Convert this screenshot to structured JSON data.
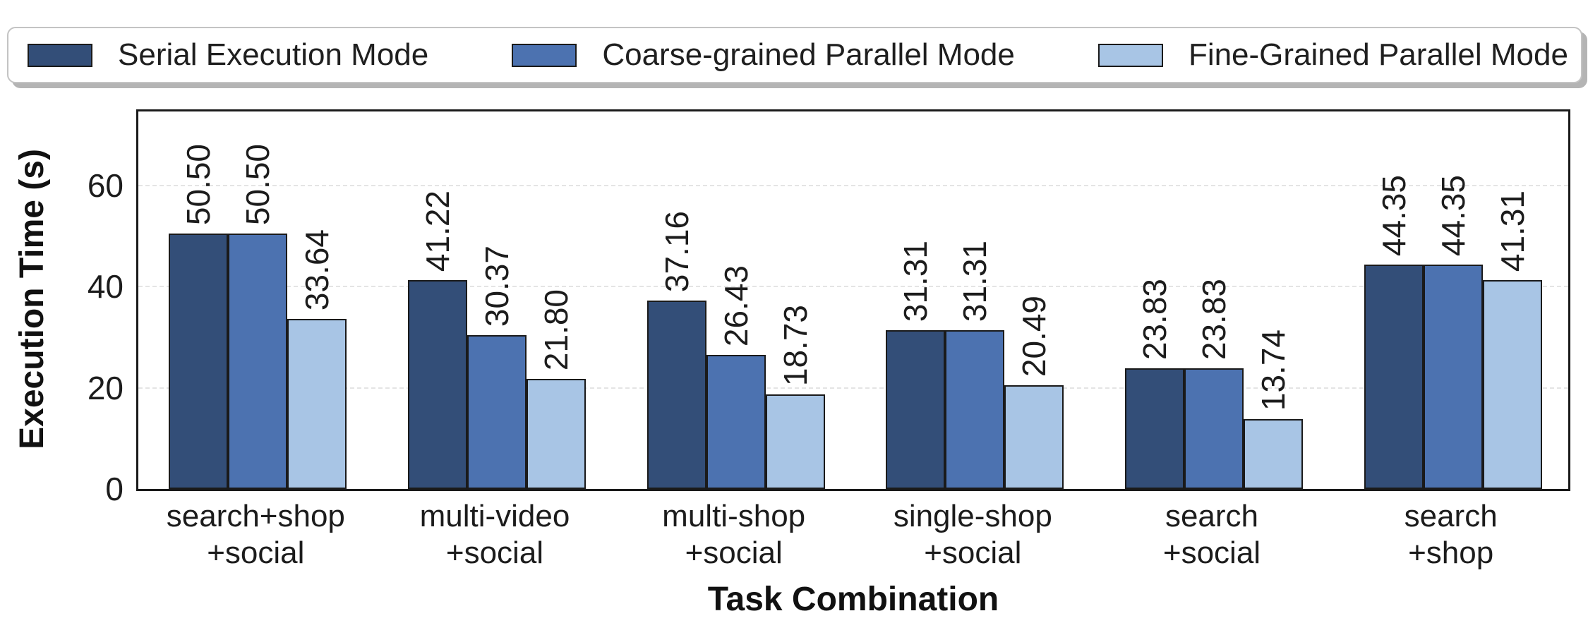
{
  "chart_data": {
    "type": "bar",
    "title": "",
    "xlabel": "Task Combination",
    "ylabel": "Execution Time (s)",
    "ylim": [
      0,
      75
    ],
    "yticks": [
      0,
      20,
      40,
      60
    ],
    "grid": {
      "axis": "y",
      "style": "dashed",
      "color": "#e4e4e4"
    },
    "legend_position": "top",
    "bar_value_labels": {
      "show": true,
      "rotation": 90,
      "decimals": 2
    },
    "bar_edge_color": "#1a1a1a",
    "categories": [
      "search+shop\n+social",
      "multi-video\n+social",
      "multi-shop\n+social",
      "single-shop\n+social",
      "search\n+social",
      "search\n+shop"
    ],
    "series": [
      {
        "name": "Serial Execution Mode",
        "color": "#334E78",
        "values": [
          50.5,
          41.22,
          37.16,
          31.31,
          23.83,
          44.35
        ]
      },
      {
        "name": "Coarse-grained Parallel Mode",
        "color": "#4C72B0",
        "values": [
          50.5,
          30.37,
          26.43,
          31.31,
          23.83,
          44.35
        ]
      },
      {
        "name": "Fine-Grained Parallel Mode",
        "color": "#A8C5E5",
        "values": [
          33.64,
          21.8,
          18.73,
          20.49,
          13.74,
          41.31
        ]
      }
    ],
    "legend": {
      "border_color": "#c3c3c3",
      "shadow_color": "#b4b4b4"
    }
  }
}
